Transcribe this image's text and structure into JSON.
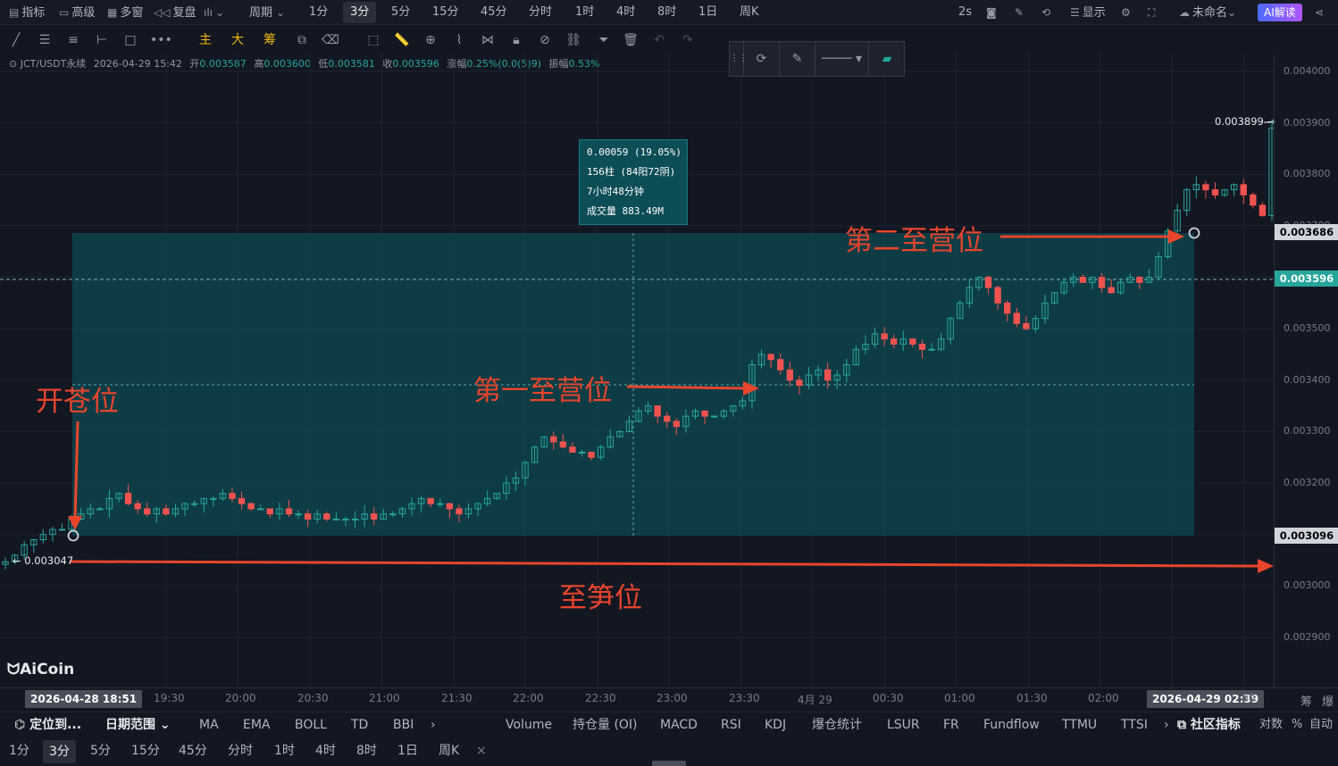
{
  "topbar": {
    "items": [
      {
        "label": "指标",
        "icon": "chart-icon"
      },
      {
        "label": "高级",
        "icon": "window-icon"
      },
      {
        "label": "多窗",
        "icon": "grid-icon"
      },
      {
        "label": "复盘",
        "icon": "replay-icon"
      },
      {
        "label": "",
        "icon": "candle-type-icon"
      },
      {
        "label": "周期"
      },
      {
        "label": "1分"
      },
      {
        "label": "3分"
      },
      {
        "label": "5分"
      },
      {
        "label": "15分"
      },
      {
        "label": "45分"
      },
      {
        "label": "分时"
      },
      {
        "label": "1时"
      },
      {
        "label": "4时"
      },
      {
        "label": "8时"
      },
      {
        "label": "1日"
      },
      {
        "label": "周K"
      }
    ],
    "active_period": "3分",
    "right": {
      "refresh": "2s",
      "display": "显示",
      "name": "未命名",
      "ai": "AI解读"
    }
  },
  "drawbar": {
    "main": "主",
    "big": "大",
    "chip": "筹"
  },
  "ohlc": {
    "symbol": "JCT/USDT永续",
    "datetime": "2026-04-29 15:42",
    "open_label": "开",
    "open": "0.003587",
    "high_label": "高",
    "high": "0.003600",
    "low_label": "低",
    "low": "0.003581",
    "close_label": "收",
    "close": "0.003596",
    "change_label": "涨幅",
    "change": "0.25%(0.0(5)9)",
    "amp_label": "振幅",
    "amp": "0.53%"
  },
  "price_axis": {
    "ticks": [
      "0.004000",
      "0.003900",
      "0.003800",
      "0.003700",
      "0.003600",
      "0.003500",
      "0.003400",
      "0.003300",
      "0.003200",
      "0.003100",
      "0.003000",
      "0.002900"
    ],
    "tag_top": "0.003686",
    "tag_current": "0.003596",
    "tag_bottom": "0.003096"
  },
  "time_axis": {
    "ticks": [
      "19:30",
      "20:00",
      "20:30",
      "21:00",
      "21:30",
      "22:00",
      "22:30",
      "23:00",
      "23:30",
      "4月 29",
      "00:30",
      "01:00",
      "01:30",
      "02:00",
      "00"
    ],
    "start_tag": "2026-04-28 18:51",
    "end_tag": "2026-04-29 02:39",
    "right_a": "筹",
    "right_b": "爆"
  },
  "measure_box": {
    "line1": "0.00059 (19.05%)",
    "line2": "156柱 (84阳72阴)",
    "line3": "7小时48分钟",
    "line4": "成交量 883.49M"
  },
  "annotations": {
    "entry": "开苍位",
    "stop": "至笋位",
    "tp1": "第一至营位",
    "tp2": "第二至营位"
  },
  "labels": {
    "start_price": "0.003047",
    "last_price": "0.003899",
    "logo": "AiCoin"
  },
  "indicator_bar": {
    "locate": "定位到...",
    "range": "日期范围",
    "items": [
      "MA",
      "EMA",
      "BOLL",
      "TD",
      "BBI"
    ],
    "sub_items": [
      "Volume",
      "持仓量 (OI)",
      "MACD",
      "RSI",
      "KDJ",
      "爆仓统计",
      "LSUR",
      "FR",
      "Fundflow",
      "TTMU",
      "TTSI"
    ],
    "community": "社区指标",
    "log": "对数",
    "percent": "%",
    "auto": "自动"
  },
  "period_bar": {
    "items": [
      "1分",
      "3分",
      "5分",
      "15分",
      "45分",
      "分时",
      "1时",
      "4时",
      "8时",
      "1日",
      "周K"
    ],
    "active": "3分",
    "close": "×"
  },
  "chart_data": {
    "type": "candlestick",
    "symbol": "JCT/USDT永续",
    "interval": "3分",
    "x_range": [
      "2026-04-28 18:51",
      "2026-04-29 02:39"
    ],
    "ylim": [
      0.00285,
      0.00405
    ],
    "closes": [
      0.003047,
      0.00306,
      0.00308,
      0.00309,
      0.0031,
      0.00311,
      0.00311,
      0.00313,
      0.00314,
      0.00315,
      0.00315,
      0.00317,
      0.00318,
      0.00316,
      0.00315,
      0.00314,
      0.00315,
      0.00314,
      0.00315,
      0.00316,
      0.00316,
      0.00317,
      0.00317,
      0.00318,
      0.00317,
      0.00316,
      0.00315,
      0.00315,
      0.00314,
      0.00315,
      0.00314,
      0.00314,
      0.00313,
      0.00314,
      0.00313,
      0.00313,
      0.00313,
      0.00313,
      0.00314,
      0.00313,
      0.00314,
      0.00314,
      0.00315,
      0.00316,
      0.00317,
      0.00316,
      0.00316,
      0.00315,
      0.00314,
      0.00315,
      0.00316,
      0.00317,
      0.00318,
      0.0032,
      0.00321,
      0.00324,
      0.00327,
      0.00329,
      0.00328,
      0.00327,
      0.00326,
      0.00326,
      0.00325,
      0.00327,
      0.00329,
      0.0033,
      0.00332,
      0.00334,
      0.00335,
      0.00333,
      0.00332,
      0.00331,
      0.00333,
      0.00334,
      0.00333,
      0.00333,
      0.00334,
      0.00335,
      0.00336,
      0.00343,
      0.00345,
      0.00344,
      0.00342,
      0.0034,
      0.00339,
      0.00341,
      0.00342,
      0.0034,
      0.00341,
      0.00343,
      0.00346,
      0.00347,
      0.00349,
      0.00348,
      0.00347,
      0.00348,
      0.00347,
      0.00346,
      0.00346,
      0.00348,
      0.00352,
      0.00355,
      0.00358,
      0.0036,
      0.00358,
      0.00355,
      0.00353,
      0.00351,
      0.0035,
      0.00352,
      0.00355,
      0.00357,
      0.00359,
      0.0036,
      0.00359,
      0.0036,
      0.00358,
      0.00357,
      0.00359,
      0.0036,
      0.00359,
      0.0036,
      0.00364,
      0.00369,
      0.00373,
      0.00377,
      0.00378,
      0.00377,
      0.00376,
      0.00377,
      0.00378,
      0.00376,
      0.00374,
      0.00372,
      0.00389
    ],
    "seed": 7
  },
  "colors": {
    "up": "#26a69a",
    "down": "#ef5350",
    "box": "#0e4a52",
    "annotation": "#e8452c",
    "bg": "#131722"
  }
}
